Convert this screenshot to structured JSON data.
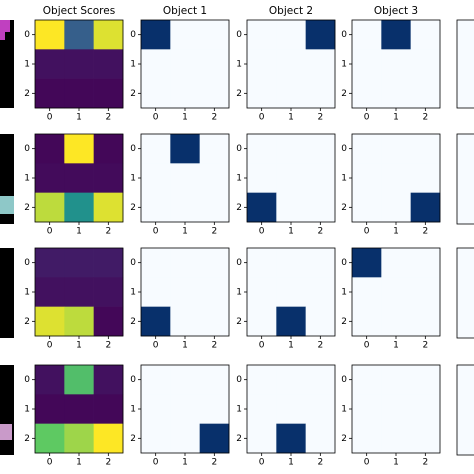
{
  "chart_data": [
    {
      "type": "heatmap",
      "title": "Object Scores",
      "colormap": "viridis",
      "clim": [
        0,
        1
      ],
      "xticks": [
        0,
        1,
        2
      ],
      "yticks": [
        0,
        1,
        2
      ],
      "values": [
        [
          1.0,
          0.3,
          0.95
        ],
        [
          0.05,
          0.05,
          0.05
        ],
        [
          0.02,
          0.02,
          0.02
        ]
      ]
    },
    {
      "type": "heatmap",
      "title": "Object 1",
      "colormap": "Blues",
      "clim": [
        0,
        1
      ],
      "xticks": [
        0,
        1,
        2
      ],
      "yticks": [
        0,
        1,
        2
      ],
      "values": [
        [
          1,
          0,
          0
        ],
        [
          0,
          0,
          0
        ],
        [
          0,
          0,
          0
        ]
      ]
    },
    {
      "type": "heatmap",
      "title": "Object 2",
      "colormap": "Blues",
      "clim": [
        0,
        1
      ],
      "xticks": [
        0,
        1,
        2
      ],
      "yticks": [
        0,
        1,
        2
      ],
      "values": [
        [
          0,
          0,
          1
        ],
        [
          0,
          0,
          0
        ],
        [
          0,
          0,
          0
        ]
      ]
    },
    {
      "type": "heatmap",
      "title": "Object 3",
      "colormap": "Blues",
      "clim": [
        0,
        1
      ],
      "xticks": [
        0,
        1,
        2
      ],
      "yticks": [
        0,
        1,
        2
      ],
      "values": [
        [
          0,
          1,
          0
        ],
        [
          0,
          0,
          0
        ],
        [
          0,
          0,
          0
        ]
      ]
    },
    {
      "type": "heatmap",
      "colormap": "viridis",
      "clim": [
        0,
        1
      ],
      "xticks": [
        0,
        1,
        2
      ],
      "yticks": [
        0,
        1,
        2
      ],
      "values": [
        [
          0.02,
          1.0,
          0.02
        ],
        [
          0.03,
          0.03,
          0.03
        ],
        [
          0.9,
          0.5,
          0.95
        ]
      ]
    },
    {
      "type": "heatmap",
      "colormap": "Blues",
      "clim": [
        0,
        1
      ],
      "xticks": [
        0,
        1,
        2
      ],
      "yticks": [
        0,
        1,
        2
      ],
      "values": [
        [
          0,
          1,
          0
        ],
        [
          0,
          0,
          0
        ],
        [
          0,
          0,
          0
        ]
      ]
    },
    {
      "type": "heatmap",
      "colormap": "Blues",
      "clim": [
        0,
        1
      ],
      "xticks": [
        0,
        1,
        2
      ],
      "yticks": [
        0,
        1,
        2
      ],
      "values": [
        [
          0,
          0,
          0
        ],
        [
          0,
          0,
          0
        ],
        [
          1,
          0,
          0
        ]
      ]
    },
    {
      "type": "heatmap",
      "colormap": "Blues",
      "clim": [
        0,
        1
      ],
      "xticks": [
        0,
        1,
        2
      ],
      "yticks": [
        0,
        1,
        2
      ],
      "values": [
        [
          0,
          0,
          0
        ],
        [
          0,
          0,
          0
        ],
        [
          0,
          0,
          1
        ]
      ]
    },
    {
      "type": "heatmap",
      "colormap": "viridis",
      "clim": [
        0,
        1
      ],
      "xticks": [
        0,
        1,
        2
      ],
      "yticks": [
        0,
        1,
        2
      ],
      "values": [
        [
          0.08,
          0.08,
          0.08
        ],
        [
          0.05,
          0.05,
          0.05
        ],
        [
          0.95,
          0.9,
          0.02
        ]
      ]
    },
    {
      "type": "heatmap",
      "colormap": "Blues",
      "clim": [
        0,
        1
      ],
      "xticks": [
        0,
        1,
        2
      ],
      "yticks": [
        0,
        1,
        2
      ],
      "values": [
        [
          0,
          0,
          0
        ],
        [
          0,
          0,
          0
        ],
        [
          1,
          0,
          0
        ]
      ]
    },
    {
      "type": "heatmap",
      "colormap": "Blues",
      "clim": [
        0,
        1
      ],
      "xticks": [
        0,
        1,
        2
      ],
      "yticks": [
        0,
        1,
        2
      ],
      "values": [
        [
          0,
          0,
          0
        ],
        [
          0,
          0,
          0
        ],
        [
          0,
          1,
          0
        ]
      ]
    },
    {
      "type": "heatmap",
      "colormap": "Blues",
      "clim": [
        0,
        1
      ],
      "xticks": [
        0,
        1,
        2
      ],
      "yticks": [
        0,
        1,
        2
      ],
      "values": [
        [
          1,
          0,
          0
        ],
        [
          0,
          0,
          0
        ],
        [
          0,
          0,
          0
        ]
      ]
    },
    {
      "type": "heatmap",
      "colormap": "viridis",
      "clim": [
        0,
        1
      ],
      "xticks": [
        0,
        1,
        2
      ],
      "yticks": [
        0,
        1,
        2
      ],
      "values": [
        [
          0.05,
          0.7,
          0.05
        ],
        [
          0.02,
          0.02,
          0.02
        ],
        [
          0.75,
          0.85,
          1.0
        ]
      ]
    },
    {
      "type": "heatmap",
      "colormap": "Blues",
      "clim": [
        0,
        1
      ],
      "xticks": [
        0,
        1,
        2
      ],
      "yticks": [
        0,
        1,
        2
      ],
      "values": [
        [
          0,
          0,
          0
        ],
        [
          0,
          0,
          0
        ],
        [
          0,
          0,
          1
        ]
      ]
    },
    {
      "type": "heatmap",
      "colormap": "Blues",
      "clim": [
        0,
        1
      ],
      "xticks": [
        0,
        1,
        2
      ],
      "yticks": [
        0,
        1,
        2
      ],
      "values": [
        [
          0,
          0,
          0
        ],
        [
          0,
          0,
          0
        ],
        [
          0,
          1,
          0
        ]
      ]
    },
    {
      "type": "heatmap",
      "colormap": "Blues",
      "clim": [
        0,
        1
      ],
      "xticks": [
        0,
        1,
        2
      ],
      "yticks": [
        0,
        1,
        2
      ],
      "values": [
        [
          0,
          0,
          0
        ],
        [
          0,
          0,
          0
        ],
        [
          0,
          0,
          0
        ]
      ]
    }
  ]
}
